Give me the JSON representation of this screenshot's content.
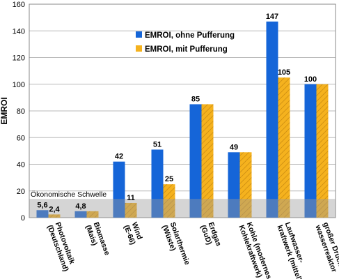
{
  "chart_data": {
    "type": "bar",
    "ylabel": "EMROI",
    "ylim": [
      0,
      160
    ],
    "yticks": [
      0,
      20,
      40,
      60,
      80,
      100,
      120,
      140,
      160
    ],
    "grid": true,
    "legend_position": "top-center",
    "categories": [
      [
        "Photovoltaik",
        "(Deutschland)"
      ],
      [
        "Biomasse",
        "(Mais)"
      ],
      [
        "Wind",
        "(E-66)"
      ],
      [
        "Solarthermie",
        "(Wüste)"
      ],
      [
        "Erdgas",
        "(GuD)"
      ],
      [
        "Kohle (modernes",
        "Kohlekraftwerk)"
      ],
      [
        "Laufwasser-",
        "kraftwerk (mittel)"
      ],
      [
        "großer Druck-",
        "wasserreaktor"
      ]
    ],
    "series": [
      {
        "name": "EMROI, ohne Pufferung",
        "color": "#1565d8",
        "values": [
          5.6,
          4.8,
          42,
          51,
          85,
          49,
          147,
          100
        ],
        "labels": [
          "5,6",
          "4,8",
          "42",
          "51",
          "85",
          "49",
          "147",
          "100"
        ]
      },
      {
        "name": "EMROI, mit Pufferung",
        "color": "#f5b21e",
        "values": [
          2.4,
          4.8,
          11,
          25,
          85,
          49,
          105,
          100
        ],
        "labels": [
          "2,4",
          "",
          "11",
          "25",
          "",
          "",
          "105",
          ""
        ]
      }
    ],
    "threshold": {
      "label": "Ökonomische Schwelle",
      "value": 14
    }
  }
}
